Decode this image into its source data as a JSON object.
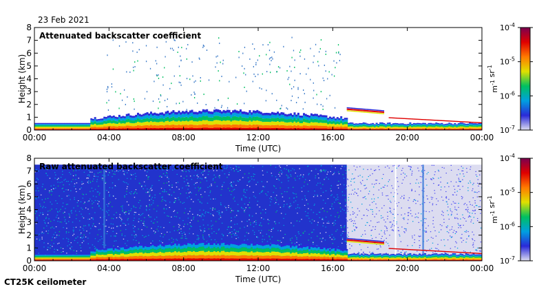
{
  "date_label": "23 Feb 2021",
  "instrument_label": "CT25K ceilometer",
  "chart_data": [
    {
      "type": "heatmap",
      "title": "Attenuated backscatter coefficient",
      "xlabel": "Time (UTC)",
      "ylabel": "Height (km)",
      "xlim_hours": [
        0,
        24
      ],
      "ylim": [
        0,
        8
      ],
      "x_ticks": [
        "00:00",
        "04:00",
        "08:00",
        "12:00",
        "16:00",
        "20:00",
        "00:00"
      ],
      "y_ticks": [
        "0",
        "1",
        "2",
        "3",
        "4",
        "5",
        "6",
        "7",
        "8"
      ],
      "colorbar": {
        "scale": "log",
        "range": [
          1e-07,
          0.0001
        ],
        "unit_label": "m-1 sr-1",
        "ticks": [
          "10-7",
          "10-6",
          "10-5",
          "10-4"
        ]
      },
      "colors": [
        "#dcdcf0",
        "#2a2ad8",
        "#00a0e0",
        "#00c060",
        "#e0e000",
        "#ff7a00",
        "#e00000",
        "#7a0050"
      ],
      "features": {
        "surface_layer_top_km": 0.6,
        "boundary_layer_max_km": 1.5,
        "cloud_layer_height_km": 1.6,
        "cloud_layer_time_range": [
          "16:45",
          "18:45"
        ],
        "sparse_scatter_top_km": 7.3
      }
    },
    {
      "type": "heatmap",
      "title": "Raw attenuated backscatter coefficient",
      "xlabel": "Time (UTC)",
      "ylabel": "Height (km)",
      "xlim_hours": [
        0,
        24
      ],
      "ylim": [
        0,
        8
      ],
      "x_ticks": [
        "00:00",
        "04:00",
        "08:00",
        "12:00",
        "16:00",
        "20:00",
        "00:00"
      ],
      "y_ticks": [
        "0",
        "1",
        "2",
        "3",
        "4",
        "5",
        "6",
        "7",
        "8"
      ],
      "colorbar": {
        "scale": "log",
        "range": [
          1e-07,
          0.0001
        ],
        "unit_label": "m-1 sr-1",
        "ticks": [
          "10-7",
          "10-6",
          "10-5",
          "10-4"
        ]
      },
      "colors": [
        "#dcdcf0",
        "#2a2ad8",
        "#00a0e0",
        "#00c060",
        "#e0e000",
        "#ff7a00",
        "#e00000",
        "#7a0050"
      ],
      "features": {
        "data_top_km": 7.5,
        "dense_noise_time_range": [
          "00:00",
          "16:45"
        ],
        "clear_background_time_range": [
          "16:45",
          "24:00"
        ],
        "gap_times": [
          "19:20"
        ]
      }
    }
  ]
}
